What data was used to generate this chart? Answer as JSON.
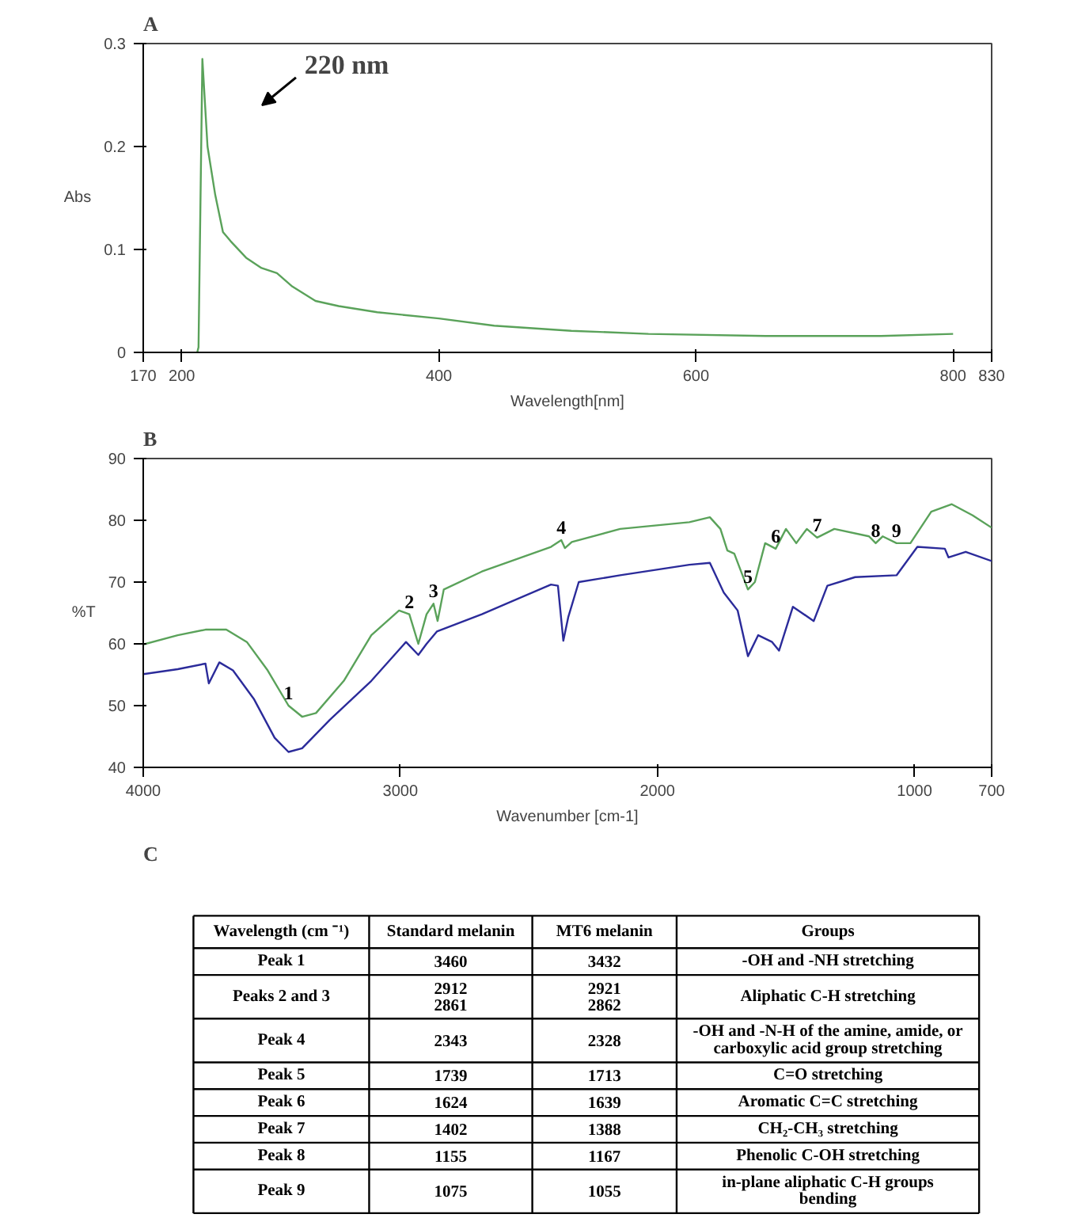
{
  "chart_data": [
    {
      "type": "line",
      "title": "A",
      "xlabel": "Wavelength[nm]",
      "ylabel": "Abs",
      "xlim": [
        170,
        830
      ],
      "xticks": [
        170,
        200,
        400,
        600,
        800,
        830
      ],
      "ylim": [
        0,
        0.3
      ],
      "yticks": [
        0,
        0.1,
        0.2,
        0.3
      ],
      "grid": false,
      "annotations": [
        "220 nm"
      ],
      "series": [
        {
          "color": "#5aa25a",
          "x": [
            212,
            213,
            216,
            220,
            226,
            232,
            238,
            250,
            262,
            274,
            286,
            304,
            322,
            352,
            400,
            443,
            503,
            563,
            654,
            744,
            800
          ],
          "values": [
            0,
            0.005,
            0.285,
            0.2,
            0.153,
            0.117,
            0.108,
            0.092,
            0.082,
            0.077,
            0.064,
            0.05,
            0.045,
            0.039,
            0.033,
            0.026,
            0.021,
            0.018,
            0.016,
            0.016,
            0.018
          ]
        }
      ]
    },
    {
      "type": "line",
      "title": "B",
      "xlabel": "Wavenumber [cm-1]",
      "ylabel": "%T",
      "xlim": [
        4000,
        700
      ],
      "xticks": [
        4000,
        3000,
        2000,
        1000,
        700
      ],
      "ylim": [
        40,
        90
      ],
      "yticks": [
        40,
        50,
        60,
        70,
        80,
        90
      ],
      "grid": false,
      "annotations": [
        {
          "text": "1",
          "x": 3435,
          "y": 50.0
        },
        {
          "text": "2",
          "x": 2965,
          "y": 64.8
        },
        {
          "text": "3",
          "x": 2871,
          "y": 66.5
        },
        {
          "text": "4",
          "x": 2374,
          "y": 76.8
        },
        {
          "text": "5",
          "x": 1648,
          "y": 68.8
        },
        {
          "text": "6",
          "x": 1540,
          "y": 75.4
        },
        {
          "text": "7",
          "x": 1379,
          "y": 77.2
        },
        {
          "text": "8",
          "x": 1151,
          "y": 76.3
        },
        {
          "text": "9",
          "x": 1070,
          "y": 76.3
        }
      ],
      "series": [
        {
          "color": "#5aa25a",
          "x": [
            4000,
            3866,
            3758,
            3677,
            3597,
            3516,
            3435,
            3382,
            3328,
            3220,
            3113,
            3005,
            2965,
            2930,
            2898,
            2871,
            2855,
            2831,
            2683,
            2414,
            2374,
            2360,
            2333,
            2145,
            1876,
            1796,
            1755,
            1728,
            1701,
            1648,
            1621,
            1581,
            1540,
            1500,
            1460,
            1419,
            1379,
            1312,
            1177,
            1151,
            1124,
            1070,
            1016,
            935,
            855,
            774,
            700
          ],
          "values": [
            59.9,
            61.4,
            62.3,
            62.3,
            60.3,
            55.7,
            50.0,
            48.2,
            48.8,
            54.0,
            61.4,
            65.4,
            64.8,
            60.0,
            64.8,
            66.5,
            63.7,
            68.8,
            71.7,
            75.7,
            76.8,
            75.5,
            76.5,
            78.6,
            79.7,
            80.5,
            78.6,
            75.1,
            74.6,
            68.8,
            70.0,
            76.3,
            75.4,
            78.6,
            76.3,
            78.6,
            77.2,
            78.6,
            77.4,
            76.3,
            77.4,
            76.3,
            76.3,
            81.4,
            82.6,
            80.8,
            78.8
          ]
        },
        {
          "color": "#2b2b9a",
          "x": [
            4000,
            3866,
            3758,
            3745,
            3704,
            3651,
            3570,
            3489,
            3435,
            3382,
            3274,
            3113,
            2978,
            2930,
            2898,
            2858,
            2683,
            2414,
            2387,
            2366,
            2347,
            2306,
            2145,
            1876,
            1796,
            1742,
            1688,
            1648,
            1608,
            1554,
            1527,
            1473,
            1392,
            1339,
            1231,
            1070,
            989,
            882,
            868,
            801,
            700
          ],
          "values": [
            55.1,
            55.9,
            56.8,
            53.6,
            57.0,
            55.7,
            51.1,
            44.8,
            42.5,
            43.1,
            47.7,
            54.0,
            60.3,
            58.2,
            60.0,
            62.0,
            64.8,
            69.6,
            69.4,
            60.5,
            64.3,
            70.0,
            71.1,
            72.8,
            73.1,
            68.3,
            65.4,
            58.0,
            61.4,
            60.3,
            58.9,
            66.0,
            63.7,
            69.4,
            70.8,
            71.1,
            75.7,
            75.4,
            74.0,
            74.9,
            73.4
          ]
        }
      ]
    },
    {
      "type": "other",
      "title": "C",
      "categories": [
        "Wavelength (cm ⁻¹)",
        "Standard melanin",
        "MT6 melanin",
        "Groups"
      ],
      "cell_labels": [
        [
          "Peak 1",
          "3460",
          "3432",
          "-OH and -NH stretching"
        ],
        [
          "Peaks 2 and 3",
          "2912\n2861",
          "2921\n2862",
          "Aliphatic C-H stretching"
        ],
        [
          "Peak 4",
          "2343",
          "2328",
          "-OH and -N-H of the amine, amide, or\ncarboxylic acid group stretching"
        ],
        [
          "Peak 5",
          "1739",
          "1713",
          "C=O stretching"
        ],
        [
          "Peak 6",
          "1624",
          "1639",
          "Aromatic C=C stretching"
        ],
        [
          "Peak 7",
          "1402",
          "1388",
          "CH₂-CH₃ stretching"
        ],
        [
          "Peak 8",
          "1155",
          "1167",
          "Phenolic C-OH stretching"
        ],
        [
          "Peak 9",
          "1075",
          "1055",
          "in-plane aliphatic C-H groups\nbending"
        ]
      ]
    }
  ]
}
